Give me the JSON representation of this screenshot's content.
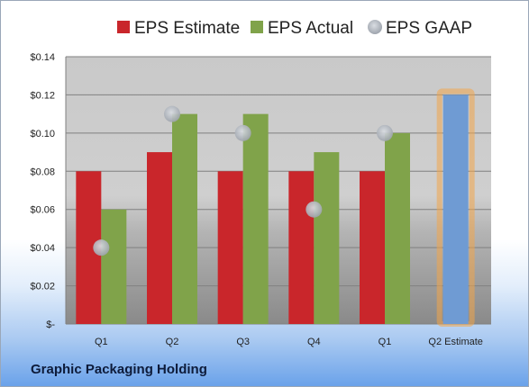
{
  "company_name": "Graphic Packaging Holding",
  "chart_data": {
    "type": "bar",
    "categories": [
      "Q1",
      "Q2",
      "Q3",
      "Q4",
      "Q1",
      "Q2 Estimate"
    ],
    "series": [
      {
        "name": "EPS Estimate",
        "values": [
          0.08,
          0.09,
          0.08,
          0.08,
          0.08,
          null
        ]
      },
      {
        "name": "EPS Actual",
        "values": [
          0.06,
          0.11,
          0.11,
          0.09,
          0.1,
          null
        ]
      },
      {
        "name": "EPS GAAP",
        "type": "scatter",
        "values": [
          0.04,
          0.11,
          0.1,
          0.06,
          0.1,
          null
        ]
      }
    ],
    "forecast": {
      "category": "Q2 Estimate",
      "value": 0.12
    },
    "yticks": [
      "$-",
      "$0.02",
      "$0.04",
      "$0.06",
      "$0.08",
      "$0.10",
      "$0.12",
      "$0.14"
    ],
    "ylim": [
      0,
      0.14
    ],
    "legend_position": "top",
    "grid": true,
    "colors": {
      "estimate": "#c9262b",
      "actual": "#80a34a",
      "gaap": "#b9bec6",
      "forecast": "#6f9bd3",
      "forecast_glow": "#f3a64a"
    }
  }
}
